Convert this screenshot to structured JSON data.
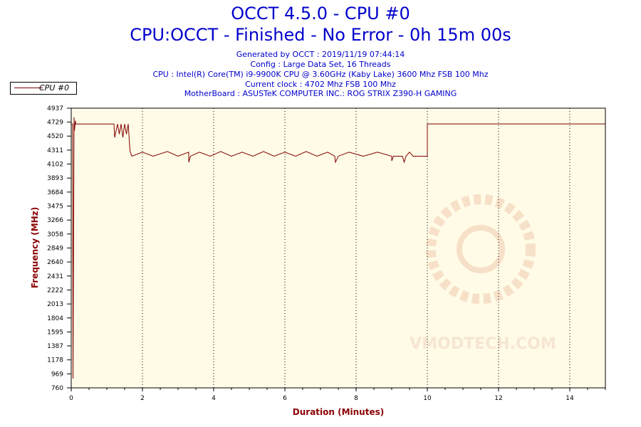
{
  "header": {
    "title_line1": "OCCT 4.5.0 - CPU #0",
    "title_line2": "CPU:OCCT - Finished - No Error - 0h 15m 00s",
    "generated": "Generated by OCCT : 2019/11/19 07:44:14",
    "config": "Config : Large Data Set, 16 Threads",
    "cpu": "CPU : Intel(R) Core(TM) i9-9900K CPU @ 3.60GHz (Kaby Lake) 3600 Mhz FSB 100 Mhz",
    "clock": "Current clock : 4702 Mhz FSB 100 Mhz",
    "motherboard": "MotherBoard : ASUSTeK COMPUTER INC.: ROG STRIX Z390-H GAMING"
  },
  "legend": {
    "label": "CPU #0"
  },
  "watermark": {
    "text": "VMODTECH.COM"
  },
  "colors": {
    "line": "#800000",
    "plot_bg": "#fffbe6",
    "title": "#0000cc",
    "axis_title": "#8b0000"
  },
  "chart_data": {
    "type": "line",
    "title": "OCCT 4.5.0 - CPU #0",
    "xlabel": "Duration (Minutes)",
    "ylabel": "Frequency (MHz)",
    "xlim": [
      0,
      15
    ],
    "ylim": [
      760,
      4937
    ],
    "x_ticks": [
      0,
      2,
      4,
      6,
      8,
      10,
      12,
      14
    ],
    "y_ticks": [
      760,
      969,
      1178,
      1387,
      1595,
      1804,
      2013,
      2222,
      2431,
      2640,
      2849,
      3058,
      3266,
      3475,
      3684,
      3893,
      4102,
      4311,
      4520,
      4729,
      4937
    ],
    "grid": "vertical dotted",
    "legend_position": "top-left",
    "series": [
      {
        "name": "CPU #0",
        "x": [
          0.0,
          0.04,
          0.05,
          0.08,
          0.09,
          0.12,
          0.13,
          0.15,
          1.2,
          1.22,
          1.3,
          1.35,
          1.4,
          1.45,
          1.5,
          1.55,
          1.6,
          1.65,
          1.7,
          2.0,
          2.3,
          2.7,
          3.0,
          3.3,
          3.3,
          3.35,
          3.6,
          3.9,
          4.2,
          4.5,
          4.8,
          5.1,
          5.4,
          5.7,
          6.0,
          6.3,
          6.6,
          6.9,
          7.2,
          7.4,
          7.42,
          7.5,
          7.8,
          8.2,
          8.6,
          9.0,
          9.0,
          9.05,
          9.3,
          9.35,
          9.4,
          9.5,
          9.6,
          9.7,
          10.0,
          10.0,
          10.02,
          15.0
        ],
        "values": [
          4700,
          4700,
          900,
          4800,
          4600,
          4750,
          4700,
          4700,
          4700,
          4500,
          4700,
          4550,
          4700,
          4500,
          4700,
          4550,
          4700,
          4300,
          4220,
          4280,
          4220,
          4290,
          4220,
          4280,
          4130,
          4220,
          4280,
          4220,
          4290,
          4220,
          4280,
          4220,
          4290,
          4220,
          4280,
          4220,
          4290,
          4220,
          4280,
          4220,
          4130,
          4220,
          4280,
          4220,
          4280,
          4220,
          4150,
          4220,
          4220,
          4130,
          4220,
          4280,
          4220,
          4220,
          4220,
          4700,
          4702,
          4702
        ]
      }
    ]
  }
}
